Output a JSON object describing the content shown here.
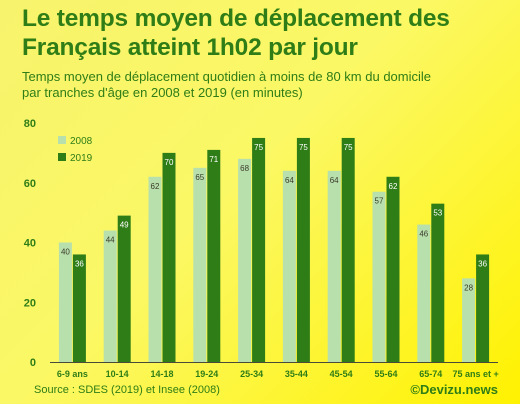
{
  "title_line1": "Le temps moyen de déplacement des",
  "title_line2": "Français atteint 1h02 par jour",
  "subtitle_line1": "Temps moyen de déplacement quotidien à moins de 80 km du domicile",
  "subtitle_line2": "par tranches d'âge en 2008 et 2019 (en minutes)",
  "source": "Source : SDES (2019) et Insee (2008)",
  "brand": "©Devizu.news",
  "colors": {
    "series_2008": "#b8e0ad",
    "series_2019": "#2f7d16",
    "text": "#2f7d16"
  },
  "chart_data": {
    "type": "bar",
    "categories": [
      "6-9 ans",
      "10-14",
      "14-18",
      "19-24",
      "25-34",
      "35-44",
      "45-54",
      "55-64",
      "65-74",
      "75 ans et +"
    ],
    "series": [
      {
        "name": "2008",
        "values": [
          40,
          44,
          62,
          65,
          68,
          64,
          64,
          57,
          46,
          28
        ]
      },
      {
        "name": "2019",
        "values": [
          36,
          49,
          70,
          71,
          75,
          75,
          75,
          62,
          53,
          36
        ]
      }
    ],
    "ylim": [
      0,
      80
    ],
    "yticks": [
      0,
      20,
      40,
      60,
      80
    ],
    "legend": "top-left",
    "grid": false
  }
}
